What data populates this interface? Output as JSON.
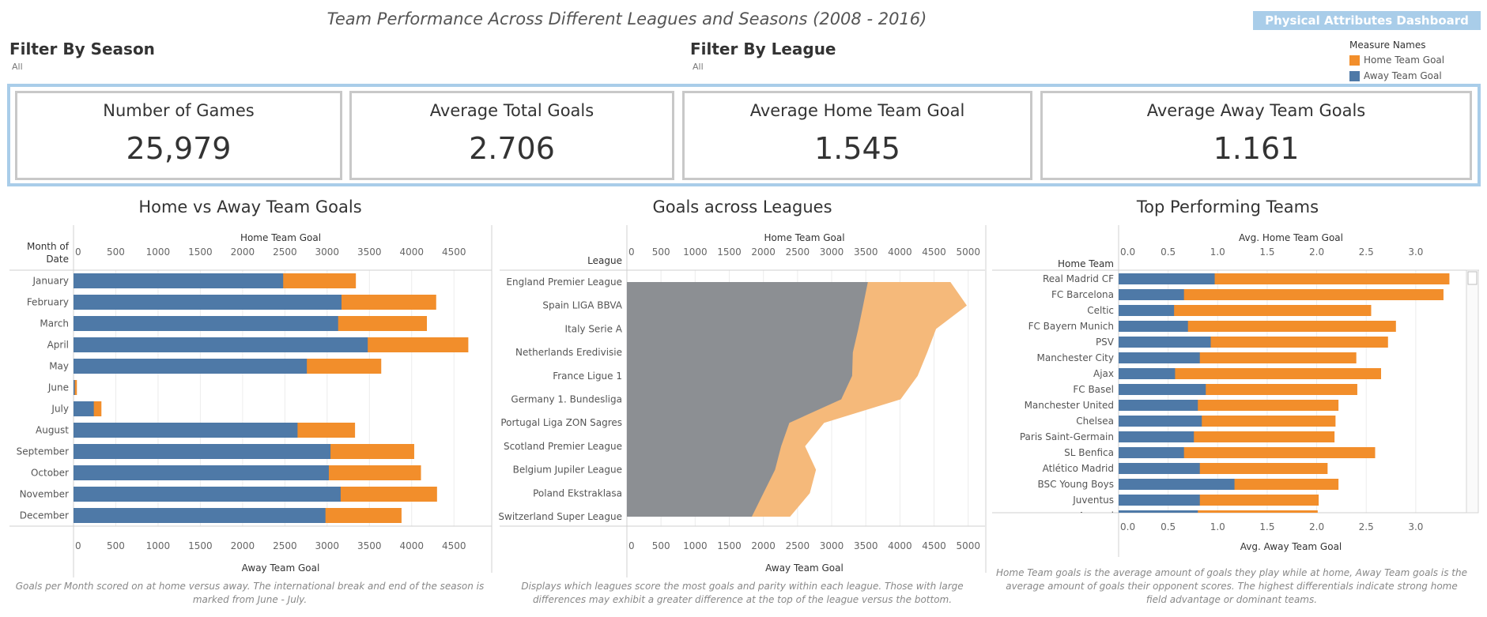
{
  "header": {
    "title": "Team Performance Across Different Leagues and Seasons (2008 - 2016)",
    "nav_button": "Physical Attributes Dashboard"
  },
  "filters": {
    "season": {
      "title": "Filter By Season",
      "value": "All"
    },
    "league": {
      "title": "Filter By League",
      "value": "All"
    }
  },
  "legend": {
    "title": "Measure Names",
    "items": [
      {
        "label": "Home Team Goal",
        "color": "#f28e2b"
      },
      {
        "label": "Away Team Goal",
        "color": "#4e79a7"
      }
    ]
  },
  "kpis": [
    {
      "label": "Number of Games",
      "value": "25,979"
    },
    {
      "label": "Average Total Goals",
      "value": "2.706"
    },
    {
      "label": "Average Home Team Goal",
      "value": "1.545"
    },
    {
      "label": "Average Away Team Goals",
      "value": "1.161"
    }
  ],
  "chart_data": [
    {
      "type": "bar",
      "title": "Home vs Away Team Goals",
      "row_header": "Month of Date",
      "xlabel_top": "Home Team Goal",
      "xlabel_bottom": "Away Team Goal",
      "xlim": [
        0,
        4900
      ],
      "ticks": [
        0,
        500,
        1000,
        1500,
        2000,
        2500,
        3000,
        3500,
        4000,
        4500
      ],
      "categories": [
        "January",
        "February",
        "March",
        "April",
        "May",
        "June",
        "July",
        "August",
        "September",
        "October",
        "November",
        "December"
      ],
      "series": [
        {
          "name": "Away Team Goal",
          "color": "#4e79a7",
          "values": [
            2480,
            3170,
            3130,
            3480,
            2760,
            15,
            240,
            2650,
            3040,
            3020,
            3160,
            2980
          ]
        },
        {
          "name": "Home Team Goal",
          "color": "#f28e2b",
          "values": [
            3340,
            4290,
            4180,
            4670,
            3640,
            40,
            330,
            3330,
            4030,
            4110,
            4300,
            3880
          ]
        }
      ],
      "caption": "Goals per Month scored on at home versus away. The international break and end of the season is marked from June - July."
    },
    {
      "type": "area",
      "title": "Goals across Leagues",
      "row_header": "League",
      "xlabel_top": "Home Team Goal",
      "xlabel_bottom": "Away Team Goal",
      "xlim": [
        0,
        5200
      ],
      "ticks": [
        0,
        500,
        1000,
        1500,
        2000,
        2500,
        3000,
        3500,
        4000,
        4500,
        5000
      ],
      "categories": [
        "England Premier League",
        "Spain LIGA BBVA",
        "Italy Serie A",
        "Netherlands Eredivisie",
        "France Ligue 1",
        "Germany 1. Bundesliga",
        "Portugal Liga ZON Sagres",
        "Scotland Premier League",
        "Belgium Jupiler League",
        "Poland Ekstraklasa",
        "Switzerland Super League"
      ],
      "series": [
        {
          "name": "Away Team Goal",
          "color": "#8c8f93",
          "values": [
            3530,
            3460,
            3390,
            3310,
            3300,
            3140,
            2380,
            2260,
            2170,
            2000,
            1830
          ]
        },
        {
          "name": "Home Team Goal",
          "color": "#f5b97a",
          "values": [
            4740,
            4980,
            4530,
            4400,
            4260,
            4010,
            2890,
            2610,
            2770,
            2680,
            2390
          ]
        }
      ],
      "caption": "Displays which leagues score the most goals and parity within each league. Those with large differences may exhibit a greater difference at the top of the league versus the bottom."
    },
    {
      "type": "bar",
      "title": "Top Performing Teams",
      "row_header": "Home Team",
      "xlabel_top": "Avg. Home Team Goal",
      "xlabel_bottom": "Avg. Away Team Goal",
      "xlim": [
        0,
        3.48
      ],
      "ticks": [
        "0.0",
        "0.5",
        "1.0",
        "1.5",
        "2.0",
        "2.5",
        "3.0"
      ],
      "categories": [
        "Real Madrid CF",
        "FC Barcelona",
        "Celtic",
        "FC Bayern Munich",
        "PSV",
        "Manchester City",
        "Ajax",
        "FC Basel",
        "Manchester United",
        "Chelsea",
        "Paris Saint-Germain",
        "SL Benfica",
        "Atlético Madrid",
        "BSC Young Boys",
        "Juventus",
        "Arsenal"
      ],
      "series": [
        {
          "name": "Away Team Goal",
          "color": "#4e79a7",
          "values": [
            0.97,
            0.66,
            0.56,
            0.7,
            0.93,
            0.82,
            0.57,
            0.88,
            0.8,
            0.84,
            0.76,
            0.66,
            0.82,
            1.17,
            0.82,
            0.8
          ]
        },
        {
          "name": "Home Team Goal",
          "color": "#f28e2b",
          "values": [
            3.34,
            3.28,
            2.55,
            2.8,
            2.72,
            2.4,
            2.65,
            2.41,
            2.22,
            2.19,
            2.18,
            2.59,
            2.11,
            2.22,
            2.02,
            2.01
          ]
        }
      ],
      "caption": "Home Team goals is the average amount of goals they play while at home, Away Team goals is the average amount of goals their opponent scores. The highest differentials indicate strong home field advantage or dominant teams."
    }
  ]
}
